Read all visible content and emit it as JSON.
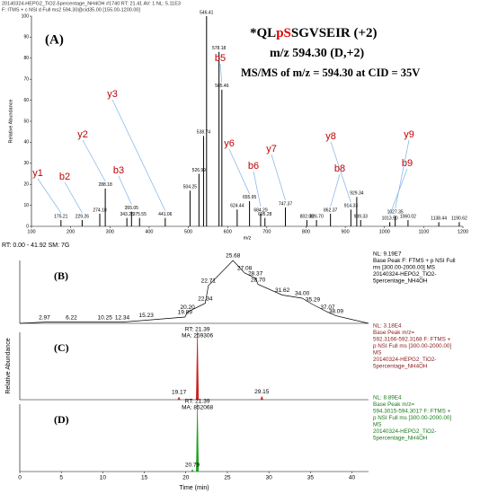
{
  "range_line": "RT: 0.00 - 41.92   SM: 7G",
  "chart_data": [
    {
      "type": "spectrum",
      "panel_label": "(A)",
      "header_lines": [
        "20140324-HEPG2_TiO2-5percentage_NH4OH #1740   RT: 21.41   AV: 1   NL: 5.11E3",
        "F: ITMS + c NSI d Full ms2 594.30@cid35.00 [155.00-1200.00]"
      ],
      "title_parts": [
        "*QL",
        "pS",
        "SGVSEIR (+2)"
      ],
      "highlight_color": "#e00000",
      "subtitle": "m/z 594.30 (D,+2)",
      "annotation": "MS/MS of m/z = 594.30 at CID = 35V",
      "xlabel": "m/z",
      "ylabel": "Relative Abundance",
      "x": [
        175.21,
        229.26,
        274.18,
        288.18,
        343.25,
        355.05,
        375.55,
        441.06,
        504.25,
        526.99,
        538.74,
        546.41,
        578.18,
        585.46,
        624.44,
        655.95,
        684.29,
        695.28,
        747.37,
        802.08,
        826.7,
        862.37,
        914.33,
        929.34,
        939.33,
        1013.5,
        1027.35,
        1060.02,
        1138.44,
        1190.62
      ],
      "x_labels": [
        "175.21",
        "229.26",
        "274.18",
        "288.18",
        "343.25",
        "355.05",
        "375.55",
        "441.06",
        "504.25",
        "526.99",
        "538.74",
        "546.41",
        "578.18",
        "585.46",
        "624.44",
        "655.95",
        "684.29",
        "695.28",
        "747.37",
        "802.08",
        "826.70",
        "862.37",
        "914.33",
        "929.34",
        "939.33",
        "1013.50",
        "1027.35",
        "1060.02",
        "1138.44",
        "1190.62"
      ],
      "values": [
        3,
        3,
        6,
        18,
        4,
        7,
        4,
        4,
        17,
        25,
        43,
        100,
        83,
        65,
        8,
        12,
        6,
        4,
        9,
        3,
        3,
        6,
        8,
        14,
        3,
        2,
        5,
        3,
        2,
        2
      ],
      "color": "#000000",
      "ions": [
        {
          "label": "y1",
          "x": 175.21
        },
        {
          "label": "b2",
          "x": 229.26
        },
        {
          "label": "y2",
          "x": 288.18
        },
        {
          "label": "b3",
          "x": 355.05
        },
        {
          "label": "y3",
          "x": 441.06
        },
        {
          "label": "b5",
          "x": 585.46
        },
        {
          "label": "y6",
          "x": 655.95
        },
        {
          "label": "b6",
          "x": 684.29
        },
        {
          "label": "y7",
          "x": 747.37
        },
        {
          "label": "b8",
          "x": 862.37
        },
        {
          "label": "y8",
          "x": 914.33
        },
        {
          "label": "b9",
          "x": 1013.5
        },
        {
          "label": "y9",
          "x": 1027.35
        }
      ],
      "ion_color": "#c00000",
      "ion_line_color": "#7fb2e5",
      "xlim": [
        100,
        1200
      ],
      "xticks": [
        100,
        200,
        300,
        400,
        500,
        600,
        700,
        800,
        900,
        1000,
        1100,
        1200
      ],
      "ylim": [
        0,
        100
      ],
      "yticks": [
        0,
        10,
        20,
        30,
        40,
        50,
        60,
        70,
        80,
        90,
        100
      ]
    },
    {
      "type": "chromatogram",
      "panel_label": "(B)",
      "x": [
        2.97,
        6.22,
        10.25,
        12.34,
        15.23,
        19.89,
        20.2,
        22.34,
        22.71,
        25.68,
        27.08,
        28.37,
        28.7,
        31.62,
        34.0,
        35.29,
        37.07,
        38.09
      ],
      "x_labels": [
        "2.97",
        "6.22",
        "10.25",
        "12.34",
        "15.23",
        "19.89",
        "20.20",
        "22.34",
        "22.71",
        "25.68",
        "27.08",
        "28.37",
        "28.70",
        "31.62",
        "34.00",
        "35.29",
        "37.07",
        "38.09"
      ],
      "values": [
        2,
        2,
        2,
        2,
        5,
        10,
        18,
        32,
        60,
        100,
        80,
        72,
        62,
        45,
        40,
        30,
        18,
        12
      ],
      "color": "#000000",
      "info_lines": [
        "NL: 9.19E7",
        "Base Peak F: FTMS + p NSI Full",
        "ms [300.00-2000.00] MS",
        "20140324-HEPG2_TiO2-",
        "5percentage_NH4OH"
      ],
      "xlim": [
        0,
        42
      ],
      "ylim": [
        0,
        100
      ]
    },
    {
      "type": "peaks",
      "panel_label": "(C)",
      "ylabel": "Relative Abundance",
      "x": [
        19.17,
        21.39,
        29.15
      ],
      "x_labels": [
        "19.17",
        "",
        "29.15"
      ],
      "values": [
        4,
        100,
        5
      ],
      "peak_annotation": [
        "RT: 21.39",
        "MA: 259306"
      ],
      "color": "#cc2020",
      "info_color": "#8b1a1a",
      "info_lines": [
        "NL: 3.18E4",
        "Base Peak m/z=",
        "592.3166-592.3168 F: FTMS +",
        "p NSI Full ms [300.00-2000.00]",
        "MS",
        "20140324-HEPG2_TiO2-",
        "5percentage_NH4OH"
      ],
      "xlim": [
        0,
        42
      ],
      "ylim": [
        0,
        100
      ]
    },
    {
      "type": "peaks",
      "panel_label": "(D)",
      "xlabel": "Time (min)",
      "x": [
        20.79,
        21.39
      ],
      "x_labels": [
        "20.79",
        ""
      ],
      "values": [
        3,
        100
      ],
      "peak_annotation": [
        "RT: 21.39",
        "MA: 852068"
      ],
      "color": "#20a020",
      "info_color": "#1a7a1a",
      "info_lines": [
        "NL: 8.89E4",
        "Base Peak m/z=",
        "594.3015-594.3017 F: FTMS +",
        "p NSI Full ms [300.00-2000.00]",
        "MS",
        "20140324-HEPG2_TiO2-",
        "5percentage_NH4OH"
      ],
      "xlim": [
        0,
        42
      ],
      "xticks": [
        0,
        5,
        10,
        15,
        20,
        25,
        30,
        35,
        40
      ],
      "ylim": [
        0,
        100
      ]
    }
  ]
}
